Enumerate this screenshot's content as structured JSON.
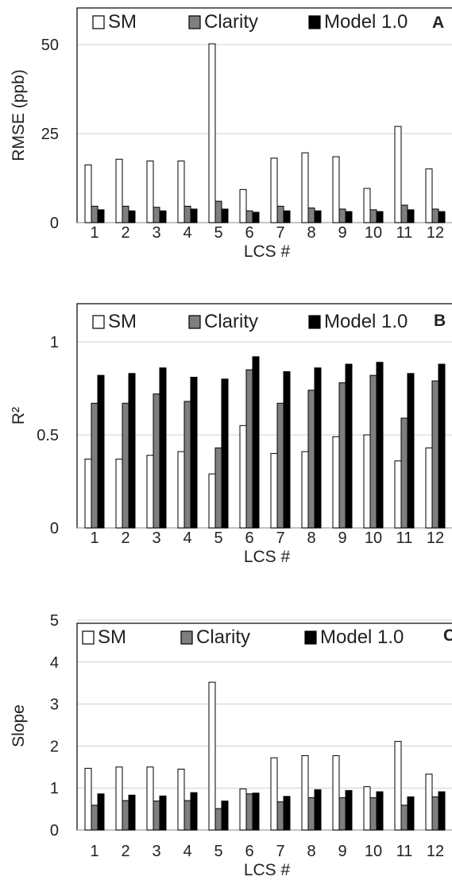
{
  "chart_data": [
    {
      "type": "bar",
      "panel_label": "A",
      "ylabel": "RMSE (ppb)",
      "xlabel": "LCS #",
      "ylim": [
        0,
        55
      ],
      "yticks": [
        "0",
        "25",
        "50"
      ],
      "ytick_values": [
        0,
        25,
        50
      ],
      "grid": true,
      "legend_position": "top",
      "categories": [
        "1",
        "2",
        "3",
        "4",
        "5",
        "6",
        "7",
        "8",
        "9",
        "10",
        "11",
        "12"
      ],
      "series": [
        {
          "name": "SM",
          "color": "#ffffff",
          "values": [
            16.2,
            17.8,
            17.3,
            17.3,
            50.2,
            9.3,
            18.1,
            19.6,
            18.5,
            9.6,
            27.0,
            15.1
          ]
        },
        {
          "name": "Clarity",
          "color": "#7f7f7f",
          "values": [
            4.6,
            4.6,
            4.3,
            4.6,
            6.0,
            3.3,
            4.6,
            4.1,
            3.8,
            3.6,
            4.9,
            3.8
          ]
        },
        {
          "name": "Model 1.0",
          "color": "#000000",
          "values": [
            3.6,
            3.3,
            3.3,
            3.8,
            3.8,
            2.9,
            3.3,
            3.3,
            3.1,
            3.1,
            3.6,
            3.1
          ]
        }
      ]
    },
    {
      "type": "bar",
      "panel_label": "B",
      "ylabel": "R²",
      "xlabel": "LCS #",
      "ylim": [
        0,
        1.1
      ],
      "yticks": [
        "0",
        "0.5",
        "1"
      ],
      "ytick_values": [
        0,
        0.5,
        1
      ],
      "grid": true,
      "legend_position": "top",
      "categories": [
        "1",
        "2",
        "3",
        "4",
        "5",
        "6",
        "7",
        "8",
        "9",
        "10",
        "11",
        "12"
      ],
      "series": [
        {
          "name": "SM",
          "color": "#ffffff",
          "values": [
            0.37,
            0.37,
            0.39,
            0.41,
            0.29,
            0.55,
            0.4,
            0.41,
            0.49,
            0.5,
            0.36,
            0.43
          ]
        },
        {
          "name": "Clarity",
          "color": "#7f7f7f",
          "values": [
            0.67,
            0.67,
            0.72,
            0.68,
            0.43,
            0.85,
            0.67,
            0.74,
            0.78,
            0.82,
            0.59,
            0.79
          ]
        },
        {
          "name": "Model 1.0",
          "color": "#000000",
          "values": [
            0.82,
            0.83,
            0.86,
            0.81,
            0.8,
            0.92,
            0.84,
            0.86,
            0.88,
            0.89,
            0.83,
            0.88
          ]
        }
      ]
    },
    {
      "type": "bar",
      "panel_label": "C",
      "ylabel": "Slope",
      "xlabel": "LCS #",
      "ylim": [
        0,
        5
      ],
      "yticks": [
        "0",
        "1",
        "2",
        "3",
        "4",
        "5"
      ],
      "ytick_values": [
        0,
        1,
        2,
        3,
        4,
        5
      ],
      "grid": true,
      "legend_position": "top",
      "categories": [
        "1",
        "2",
        "3",
        "4",
        "5",
        "6",
        "7",
        "8",
        "9",
        "10",
        "11",
        "12"
      ],
      "series": [
        {
          "name": "SM",
          "color": "#ffffff",
          "values": [
            1.47,
            1.5,
            1.5,
            1.45,
            3.52,
            0.98,
            1.72,
            1.77,
            1.77,
            1.03,
            2.11,
            1.33
          ]
        },
        {
          "name": "Clarity",
          "color": "#7f7f7f",
          "values": [
            0.59,
            0.7,
            0.69,
            0.7,
            0.51,
            0.86,
            0.67,
            0.77,
            0.77,
            0.77,
            0.59,
            0.79
          ]
        },
        {
          "name": "Model 1.0",
          "color": "#000000",
          "values": [
            0.86,
            0.83,
            0.81,
            0.89,
            0.69,
            0.88,
            0.8,
            0.96,
            0.94,
            0.91,
            0.79,
            0.91
          ]
        }
      ]
    }
  ]
}
